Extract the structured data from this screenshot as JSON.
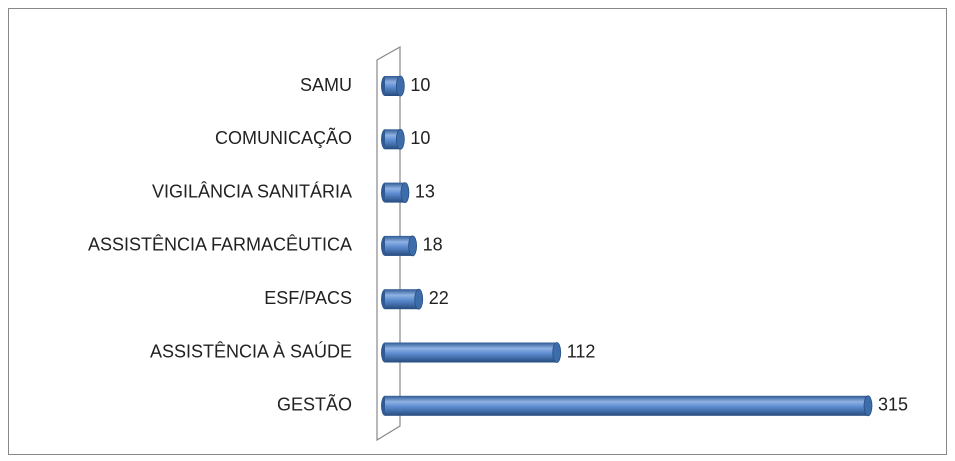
{
  "chart_data": {
    "type": "bar",
    "orientation": "horizontal",
    "categories": [
      "SAMU",
      "COMUNICAÇÃO",
      "VIGILÂNCIA SANITÁRIA",
      "ASSISTÊNCIA FARMACÊUTICA",
      "ESF/PACS",
      "ASSISTÊNCIA À SAÚDE",
      "GESTÃO"
    ],
    "values": [
      10,
      10,
      13,
      18,
      22,
      112,
      315
    ],
    "color": "#4a7ebb"
  }
}
